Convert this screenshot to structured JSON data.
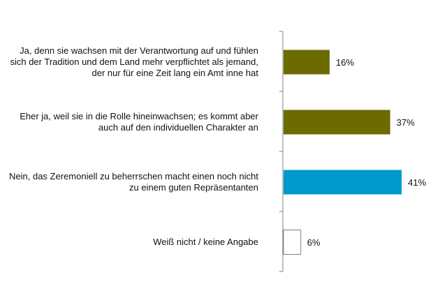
{
  "chart_data": {
    "type": "bar",
    "orientation": "horizontal",
    "categories": [
      [
        "Ja, denn sie wachsen mit der Verantwortung auf und fühlen",
        "sich der Tradition und dem Land mehr verpflichtet als jemand,",
        "der nur für eine Zeit lang ein Amt inne hat"
      ],
      [
        "Eher ja, weil sie in die Rolle hineinwachsen; es kommt aber",
        "auch auf den individuellen Charakter an"
      ],
      [
        "Nein, das Zeremoniell zu beherrschen macht einen noch nicht",
        "zu einem guten Repräsentanten"
      ],
      [
        "Weiß nicht / keine Angabe"
      ]
    ],
    "values": [
      16,
      37,
      41,
      6
    ],
    "value_labels": [
      "16%",
      "37%",
      "41%",
      "6%"
    ],
    "bar_colors": [
      "#6b6b00",
      "#6b6b00",
      "#0099cc",
      "#ffffff"
    ],
    "bar_outline": "#7f7f7f",
    "axis_color": "#7f7f7f",
    "xlim": [
      0,
      70
    ],
    "grid": false,
    "legend": "none"
  }
}
